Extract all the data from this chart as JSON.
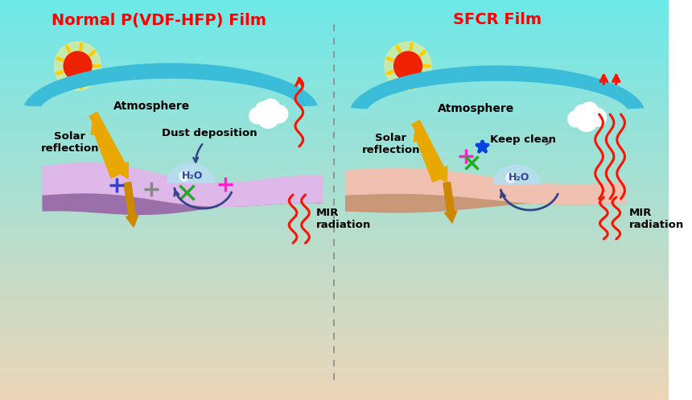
{
  "title_left": "Normal P(VDF-HFP) Film",
  "title_right": "SFCR Film",
  "title_color": "#FF0000",
  "bg_top_color": "#6DE8E8",
  "bg_bottom_color": "#EDD5B8",
  "atmosphere_color_top": "#4BBFDF",
  "atmosphere_color_bot": "#87CEEB",
  "film_left_color": "#DDB8E8",
  "film_left_edge_color": "#9B6FAA",
  "film_right_color": "#F0C0B0",
  "film_right_edge_color": "#C89878",
  "solar_arrow_color": "#E8A800",
  "solar_arrow_dark": "#CC8800",
  "mir_arrow_color": "#FF1100",
  "atmosphere_text": "Atmosphere",
  "h2o_text": "H₂O",
  "solar_reflection_text": "Solar\nreflection",
  "dust_deposition_text": "Dust deposition",
  "mir_radiation_text": "MIR\nradiation",
  "keep_clean_text": "Keep clean",
  "solar_reflection_text2": "Solar\nreflection",
  "mir_radiation_text2": "MIR\nradiation"
}
